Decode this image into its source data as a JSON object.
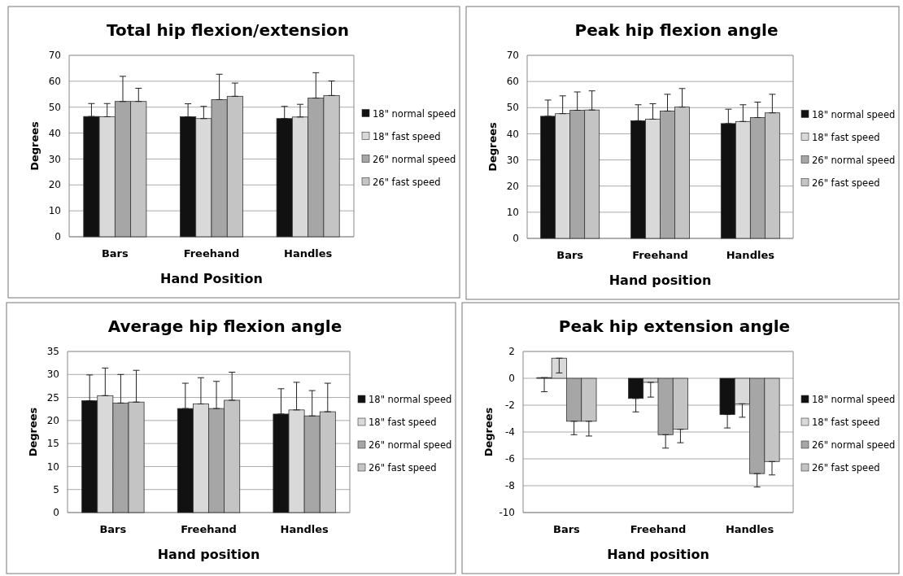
{
  "chart_data": [
    {
      "type": "bar",
      "title": "Total hip flexion/extension",
      "xlabel": "Hand Position",
      "ylabel": "Degrees",
      "categories": [
        "Bars",
        "Freehand",
        "Handles"
      ],
      "ylim": [
        0,
        70
      ],
      "yticks": [
        0,
        10,
        20,
        30,
        40,
        50,
        60,
        70
      ],
      "grid": "y",
      "legend": "right",
      "series": [
        {
          "name": "18\" normal speed",
          "color": "#111111",
          "values": [
            46.4,
            46.3,
            45.6
          ],
          "errors": [
            [
              46.4,
              51.4
            ],
            [
              46.3,
              51.3
            ],
            [
              45.6,
              50.3
            ]
          ]
        },
        {
          "name": "18\" fast speed",
          "color": "#d9d9d9",
          "values": [
            46.3,
            45.6,
            46.2
          ],
          "errors": [
            [
              46.3,
              51.4
            ],
            [
              45.6,
              50.3
            ],
            [
              46.2,
              51.1
            ]
          ]
        },
        {
          "name": "26\" normal speed",
          "color": "#a6a6a6",
          "values": [
            52.2,
            52.9,
            53.5
          ],
          "errors": [
            [
              52.2,
              61.9
            ],
            [
              52.9,
              62.7
            ],
            [
              53.5,
              63.3
            ]
          ]
        },
        {
          "name": "26\" fast speed",
          "color": "#c4c4c4",
          "values": [
            52.2,
            54.2,
            54.5
          ],
          "errors": [
            [
              52.2,
              57.3
            ],
            [
              54.2,
              59.3
            ],
            [
              54.5,
              60.1
            ]
          ]
        }
      ]
    },
    {
      "type": "bar",
      "title": "Peak hip flexion angle",
      "xlabel": "Hand position",
      "ylabel": "Degrees",
      "categories": [
        "Bars",
        "Freehand",
        "Handles"
      ],
      "ylim": [
        0,
        70
      ],
      "yticks": [
        0,
        10,
        20,
        30,
        40,
        50,
        60,
        70
      ],
      "grid": "y",
      "legend": "right",
      "series": [
        {
          "name": "18\" normal speed",
          "color": "#111111",
          "values": [
            46.7,
            45.0,
            43.9
          ],
          "errors": [
            [
              46.7,
              52.9
            ],
            [
              45.0,
              51.1
            ],
            [
              43.9,
              49.4
            ]
          ]
        },
        {
          "name": "18\" fast speed",
          "color": "#d9d9d9",
          "values": [
            47.7,
            45.6,
            44.7
          ],
          "errors": [
            [
              47.7,
              54.5
            ],
            [
              45.6,
              51.5
            ],
            [
              44.7,
              51.1
            ]
          ]
        },
        {
          "name": "26\" normal speed",
          "color": "#a6a6a6",
          "values": [
            49.0,
            48.7,
            46.2
          ],
          "errors": [
            [
              49.0,
              56.0
            ],
            [
              48.7,
              55.1
            ],
            [
              46.2,
              52.1
            ]
          ]
        },
        {
          "name": "26\" fast speed",
          "color": "#c4c4c4",
          "values": [
            49.1,
            50.2,
            48.0
          ],
          "errors": [
            [
              49.1,
              56.4
            ],
            [
              50.2,
              57.3
            ],
            [
              48.0,
              55.1
            ]
          ]
        }
      ]
    },
    {
      "type": "bar",
      "title": "Average hip flexion angle",
      "xlabel": "Hand position",
      "ylabel": "Degrees",
      "categories": [
        "Bars",
        "Freehand",
        "Handles"
      ],
      "ylim": [
        0,
        35
      ],
      "yticks": [
        0,
        5,
        10,
        15,
        20,
        25,
        30,
        35
      ],
      "grid": "y",
      "legend": "right",
      "series": [
        {
          "name": "18\" normal speed",
          "color": "#111111",
          "values": [
            24.3,
            22.6,
            21.4
          ],
          "errors": [
            [
              24.3,
              29.9
            ],
            [
              22.6,
              28.1
            ],
            [
              21.4,
              26.9
            ]
          ]
        },
        {
          "name": "18\" fast speed",
          "color": "#d9d9d9",
          "values": [
            25.4,
            23.6,
            22.3
          ],
          "errors": [
            [
              25.4,
              31.4
            ],
            [
              23.6,
              29.3
            ],
            [
              22.3,
              28.3
            ]
          ]
        },
        {
          "name": "26\" normal speed",
          "color": "#a6a6a6",
          "values": [
            23.8,
            22.6,
            21.0
          ],
          "errors": [
            [
              23.8,
              30.0
            ],
            [
              22.6,
              28.5
            ],
            [
              21.0,
              26.5
            ]
          ]
        },
        {
          "name": "26\" fast speed",
          "color": "#c4c4c4",
          "values": [
            24.0,
            24.4,
            21.9
          ],
          "errors": [
            [
              24.0,
              30.9
            ],
            [
              24.4,
              30.5
            ],
            [
              21.9,
              28.1
            ]
          ]
        }
      ]
    },
    {
      "type": "bar",
      "title": "Peak hip extension angle",
      "xlabel": "Hand position",
      "ylabel": "Degrees",
      "categories": [
        "Bars",
        "Freehand",
        "Handles"
      ],
      "ylim": [
        -10,
        2
      ],
      "yticks": [
        -10,
        -8,
        -6,
        -4,
        -2,
        0,
        2
      ],
      "grid": "y",
      "legend": "right",
      "series": [
        {
          "name": "18\" normal speed",
          "color": "#111111",
          "values": [
            0.05,
            -1.5,
            -2.7
          ],
          "errors": [
            [
              -1.0,
              0.05
            ],
            [
              -2.5,
              -1.5
            ],
            [
              -3.7,
              -2.7
            ]
          ]
        },
        {
          "name": "18\" fast speed",
          "color": "#d9d9d9",
          "values": [
            1.5,
            -0.3,
            -1.9
          ],
          "errors": [
            [
              0.4,
              1.5
            ],
            [
              -1.4,
              -0.3
            ],
            [
              -2.9,
              -1.9
            ]
          ]
        },
        {
          "name": "26\" normal speed",
          "color": "#a6a6a6",
          "values": [
            -3.2,
            -4.2,
            -7.1
          ],
          "errors": [
            [
              -4.2,
              -3.2
            ],
            [
              -5.2,
              -4.2
            ],
            [
              -8.1,
              -7.1
            ]
          ]
        },
        {
          "name": "26\" fast speed",
          "color": "#c4c4c4",
          "values": [
            -3.2,
            -3.8,
            -6.2
          ],
          "errors": [
            [
              -4.3,
              -3.2
            ],
            [
              -4.8,
              -3.8
            ],
            [
              -7.2,
              -6.2
            ]
          ]
        }
      ]
    }
  ]
}
